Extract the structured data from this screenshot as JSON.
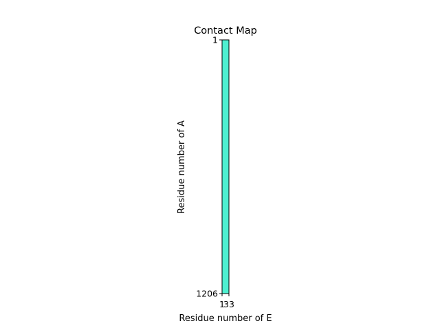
{
  "chart_data": {
    "type": "heatmap",
    "title": "Contact Map",
    "xlabel": "Residue number of E",
    "ylabel": "Residue number of A",
    "x_ticks": [
      "1",
      "33"
    ],
    "y_ticks": [
      "1",
      "1206"
    ],
    "xlim": [
      1,
      33
    ],
    "ylim": [
      1,
      1206
    ],
    "fill_color": "#4ef0d0",
    "edge_color": "#000000",
    "grid": false,
    "legend": "none"
  }
}
